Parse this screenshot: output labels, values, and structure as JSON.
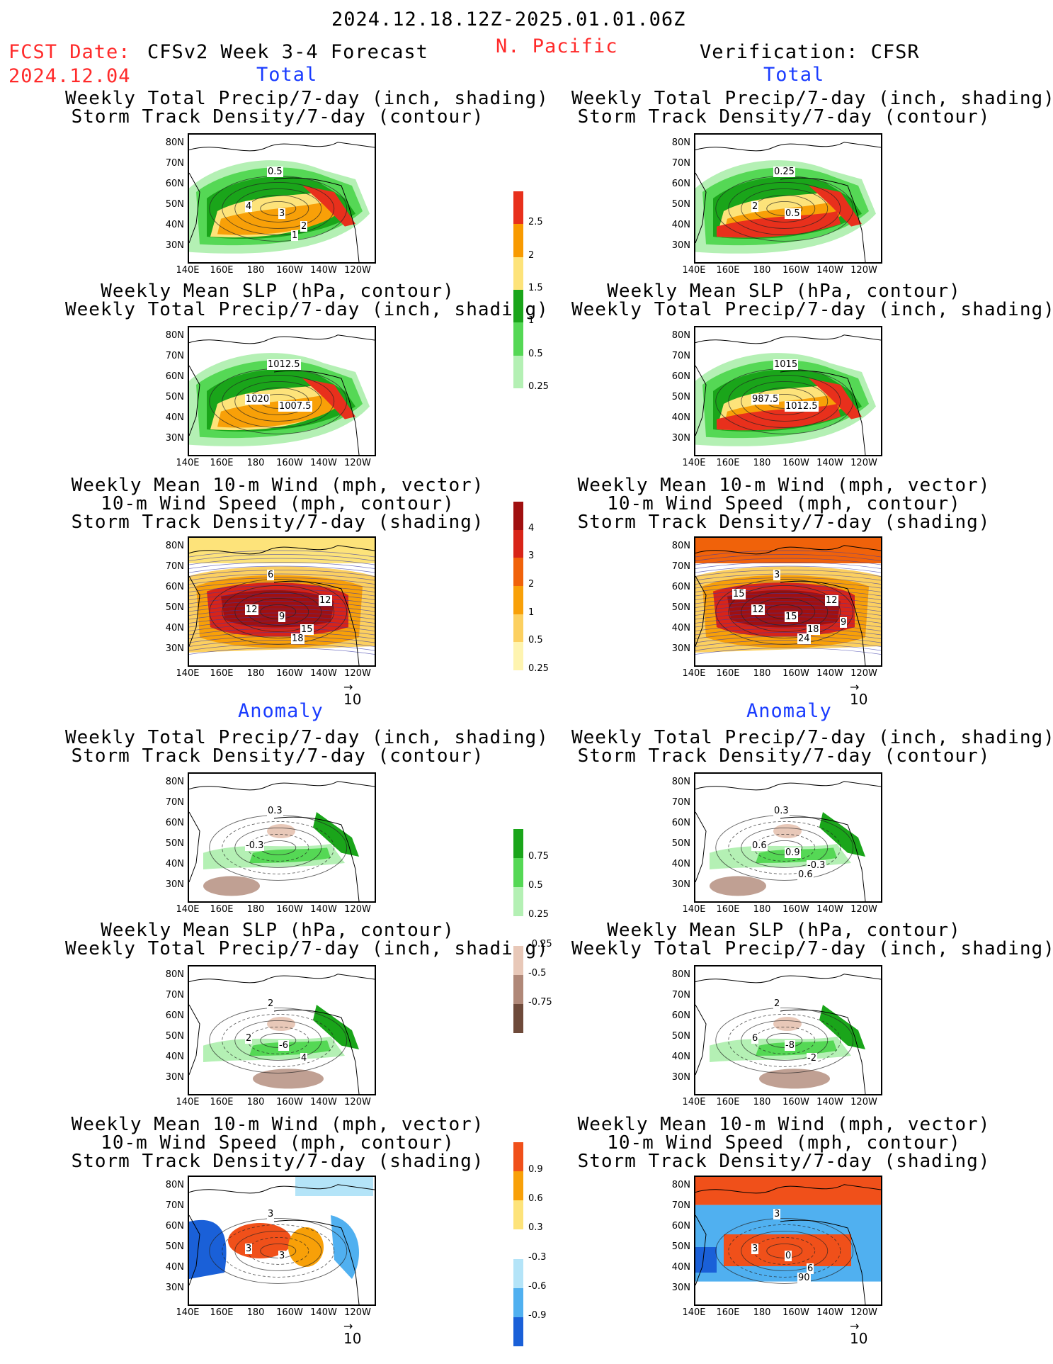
{
  "header": {
    "date_range": "2024.12.18.12Z-2025.01.01.06Z",
    "fcst_label": "FCST Date:",
    "fcst_date": "2024.12.04",
    "model": "CFSv2 Week 3-4 Forecast",
    "region": "N. Pacific",
    "verification": "Verification: CFSR",
    "total_label": "Total",
    "anomaly_label": "Anomaly"
  },
  "axes": {
    "lat_ticks": [
      "80N",
      "70N",
      "60N",
      "50N",
      "40N",
      "30N"
    ],
    "lon_ticks": [
      "140E",
      "160E",
      "180",
      "160W",
      "140W",
      "120W"
    ],
    "vector_ref": "10"
  },
  "panels": [
    {
      "id": "fc-total-precip",
      "lines": [
        "Weekly Total Precip/7-day (inch, shading)",
        "Storm Track Density/7-day (contour)"
      ],
      "labels": [
        "0.5",
        "4",
        "3",
        "2",
        "1"
      ],
      "field": "precip"
    },
    {
      "id": "vf-total-precip",
      "lines": [
        "Weekly Total Precip/7-day (inch, shading)",
        "Storm Track Density/7-day (contour)"
      ],
      "labels": [
        "0.25",
        "2",
        "0.5"
      ],
      "field": "precip"
    },
    {
      "id": "fc-total-slp",
      "lines": [
        "Weekly Mean SLP (hPa, contour)",
        "Weekly Total Precip/7-day (inch, shading)"
      ],
      "labels": [
        "1012.5",
        "1020",
        "1007.5"
      ],
      "field": "precip"
    },
    {
      "id": "vf-total-slp",
      "lines": [
        "Weekly Mean SLP (hPa, contour)",
        "Weekly Total Precip/7-day (inch, shading)"
      ],
      "labels": [
        "1015",
        "987.5",
        "1012.5"
      ],
      "field": "precip"
    },
    {
      "id": "fc-total-wind",
      "lines": [
        "Weekly Mean 10-m Wind (mph, vector)",
        "10-m Wind Speed (mph, contour)",
        "Storm Track Density/7-day (shading)"
      ],
      "labels": [
        "6",
        "12",
        "9",
        "15",
        "18",
        "12"
      ],
      "field": "storm"
    },
    {
      "id": "vf-total-wind",
      "lines": [
        "Weekly Mean 10-m Wind (mph, vector)",
        "10-m Wind Speed (mph, contour)",
        "Storm Track Density/7-day (shading)"
      ],
      "labels": [
        "3",
        "12",
        "15",
        "18",
        "24",
        "12",
        "9",
        "15"
      ],
      "field": "storm"
    },
    {
      "id": "fc-anom-precip",
      "lines": [
        "Weekly Total Precip/7-day (inch, shading)",
        "Storm Track Density/7-day (contour)"
      ],
      "labels": [
        "0.3",
        "-0.3"
      ],
      "field": "anom"
    },
    {
      "id": "vf-anom-precip",
      "lines": [
        "Weekly Total Precip/7-day (inch, shading)",
        "Storm Track Density/7-day (contour)"
      ],
      "labels": [
        "0.3",
        "0.6",
        "0.9",
        "-0.3",
        "0.6"
      ],
      "field": "anom"
    },
    {
      "id": "fc-anom-slp",
      "lines": [
        "Weekly Mean SLP (hPa, contour)",
        "Weekly Total Precip/7-day (inch, shading)"
      ],
      "labels": [
        "2",
        "2",
        "-6",
        "4"
      ],
      "field": "anom"
    },
    {
      "id": "vf-anom-slp",
      "lines": [
        "Weekly Mean SLP (hPa, contour)",
        "Weekly Total Precip/7-day (inch, shading)"
      ],
      "labels": [
        "2",
        "6",
        "-8",
        "-2"
      ],
      "field": "anom"
    },
    {
      "id": "fc-anom-wind",
      "lines": [
        "Weekly Mean 10-m Wind (mph, vector)",
        "10-m Wind Speed (mph, contour)",
        "Storm Track Density/7-day (shading)"
      ],
      "labels": [
        "3",
        "3",
        "3"
      ],
      "field": "stormanom"
    },
    {
      "id": "vf-anom-wind",
      "lines": [
        "Weekly Mean 10-m Wind (mph, vector)",
        "10-m Wind Speed (mph, contour)",
        "Storm Track Density/7-day (shading)"
      ],
      "labels": [
        "3",
        "3",
        "0",
        "6",
        "90"
      ],
      "field": "stormanom"
    }
  ],
  "colorbars": [
    {
      "id": "precip-bar",
      "labels": [
        "2.5",
        "2",
        "1.5",
        "1",
        "0.5",
        "0.25"
      ],
      "colors": [
        "#e8301c",
        "#f89a00",
        "#fde37a",
        "#1aa51a",
        "#55d855",
        "#b4f0b4"
      ]
    },
    {
      "id": "storm-bar",
      "labels": [
        "4",
        "3",
        "2",
        "1",
        "0.5",
        "0.25"
      ],
      "colors": [
        "#a01010",
        "#d82418",
        "#f0620a",
        "#f8a008",
        "#fcd060",
        "#fef4b0"
      ]
    },
    {
      "id": "anom-precip-bar",
      "labels": [
        "0.75",
        "0.5",
        "0.25",
        "-0.25",
        "-0.5",
        "-0.75"
      ],
      "colors": [
        "#1aa51a",
        "#55d855",
        "#b4f0b4",
        "#ffffff",
        "#e8c8b8",
        "#b08878",
        "#6e4a3a"
      ]
    },
    {
      "id": "anom-storm-bar",
      "labels": [
        "0.9",
        "0.6",
        "0.3",
        "-0.3",
        "-0.6",
        "-0.9"
      ],
      "colors": [
        "#f0501a",
        "#f8a008",
        "#fde37a",
        "#ffffff",
        "#b4e4f8",
        "#50b0f0",
        "#1a60d8"
      ]
    }
  ]
}
